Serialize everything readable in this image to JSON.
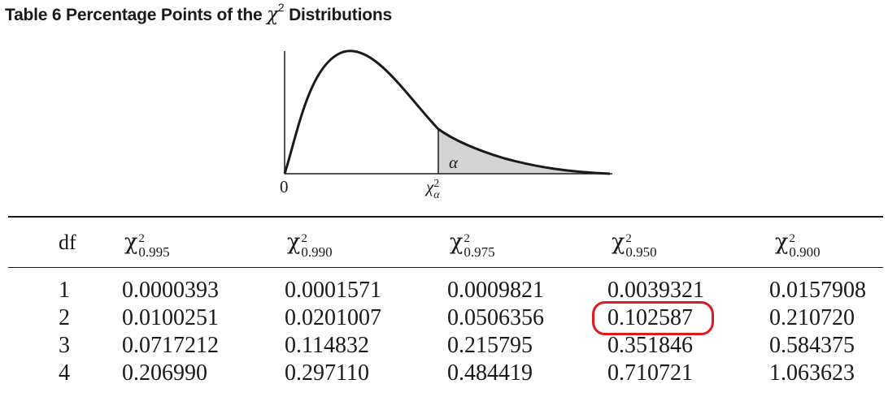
{
  "title": {
    "prefix": "Table 6  Percentage Points of the ",
    "chi": "χ",
    "sup": "2",
    "suffix": " Distributions"
  },
  "figure": {
    "zero_label": "0",
    "alpha_label": "α",
    "critical_label_chi": "χ",
    "critical_label_sup": "2",
    "critical_label_sub": "α",
    "shade_color": "#d4d4d4"
  },
  "table": {
    "headers": [
      {
        "text": "df"
      },
      {
        "chi": "χ",
        "sup": "2",
        "sub": "0.995"
      },
      {
        "chi": "χ",
        "sup": "2",
        "sub": "0.990"
      },
      {
        "chi": "χ",
        "sup": "2",
        "sub": "0.975"
      },
      {
        "chi": "χ",
        "sup": "2",
        "sub": "0.950"
      },
      {
        "chi": "χ",
        "sup": "2",
        "sub": "0.900"
      }
    ],
    "rows": [
      [
        "1",
        "0.0000393",
        "0.0001571",
        "0.0009821",
        "0.0039321",
        "0.0157908"
      ],
      [
        "2",
        "0.0100251",
        "0.0201007",
        "0.0506356",
        "0.102587",
        "0.210720"
      ],
      [
        "3",
        "0.0717212",
        "0.114832",
        "0.215795",
        "0.351846",
        "0.584375"
      ],
      [
        "4",
        "0.206990",
        "0.297110",
        "0.484419",
        "0.710721",
        "1.063623"
      ]
    ],
    "highlight": {
      "row": 1,
      "col": 4,
      "color": "#e0191f"
    }
  }
}
